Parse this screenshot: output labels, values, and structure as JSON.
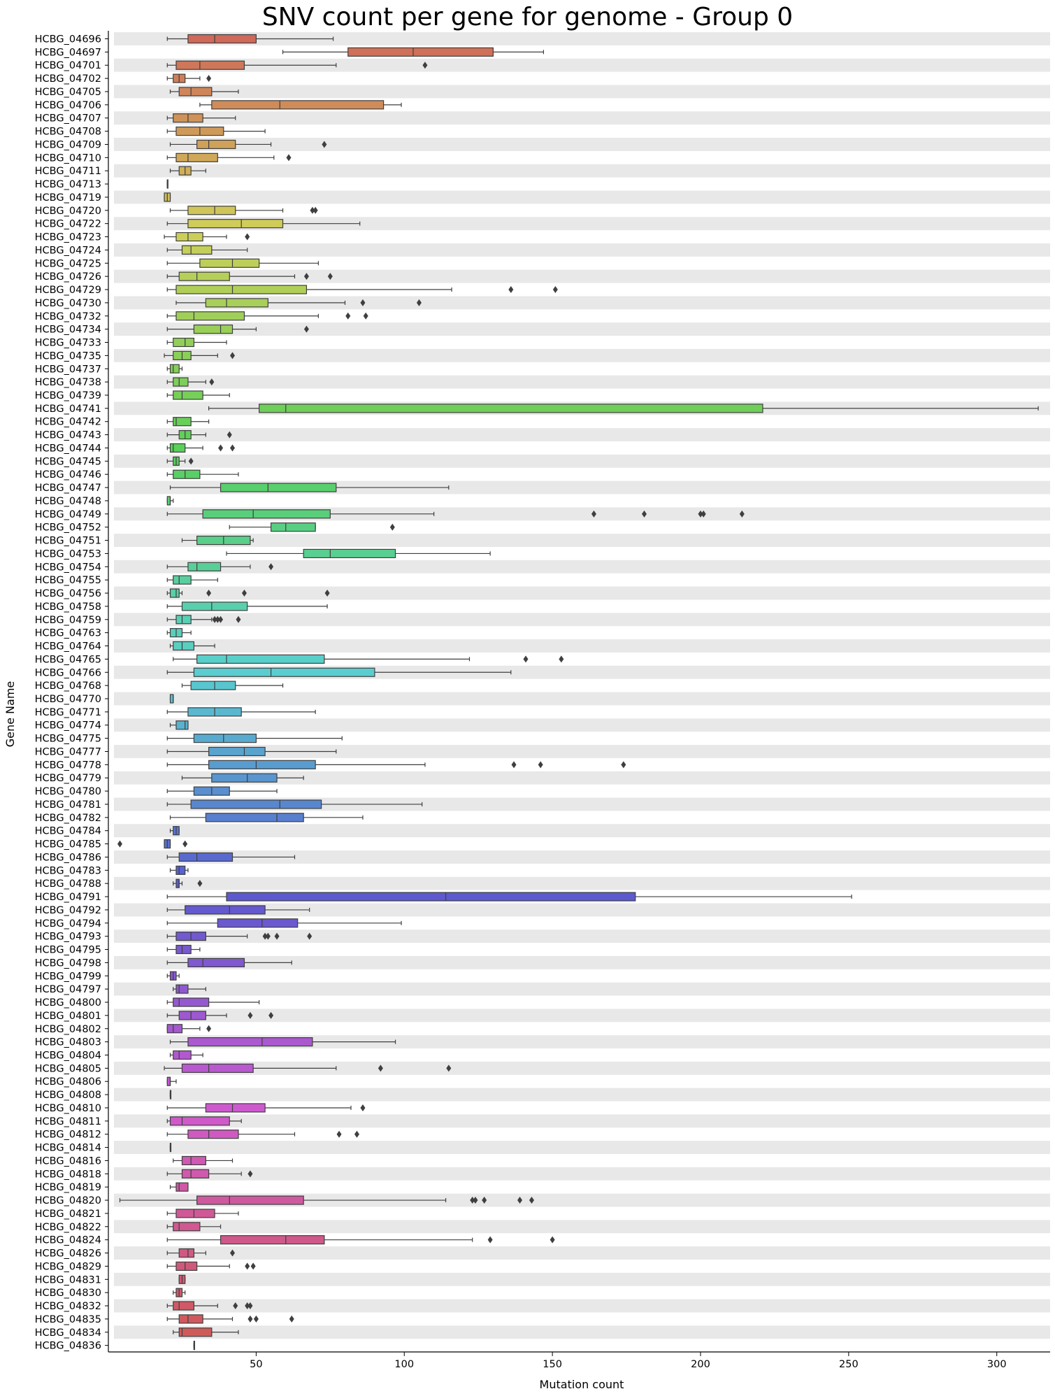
{
  "chart_data": {
    "type": "boxplot",
    "orientation": "horizontal",
    "title": "SNV count per gene for genome - Group 0",
    "xlabel": "Mutation count",
    "ylabel": "Gene Name",
    "xlim": [
      2,
      318
    ],
    "xticks": [
      50,
      100,
      150,
      200,
      250,
      300
    ],
    "grid": false,
    "alternating_row_bands": true,
    "band_color": "#e8e8e8",
    "genes": [
      {
        "name": "HCBG_04696",
        "whislo": 20,
        "q1": 27,
        "med": 36,
        "q3": 50,
        "whishi": 76,
        "fliers": []
      },
      {
        "name": "HCBG_04697",
        "whislo": 59,
        "q1": 81,
        "med": 103,
        "q3": 130,
        "whishi": 147,
        "fliers": []
      },
      {
        "name": "HCBG_04701",
        "whislo": 20,
        "q1": 23,
        "med": 31,
        "q3": 46,
        "whishi": 77,
        "fliers": [
          107
        ]
      },
      {
        "name": "HCBG_04702",
        "whislo": 20,
        "q1": 22,
        "med": 24,
        "q3": 26,
        "whishi": 31,
        "fliers": [
          34
        ]
      },
      {
        "name": "HCBG_04705",
        "whislo": 21,
        "q1": 24,
        "med": 28,
        "q3": 35,
        "whishi": 44,
        "fliers": []
      },
      {
        "name": "HCBG_04706",
        "whislo": 31,
        "q1": 35,
        "med": 58,
        "q3": 93,
        "whishi": 99,
        "fliers": []
      },
      {
        "name": "HCBG_04707",
        "whislo": 20,
        "q1": 22,
        "med": 27,
        "q3": 32,
        "whishi": 43,
        "fliers": []
      },
      {
        "name": "HCBG_04708",
        "whislo": 20,
        "q1": 23,
        "med": 31,
        "q3": 39,
        "whishi": 53,
        "fliers": []
      },
      {
        "name": "HCBG_04709",
        "whislo": 21,
        "q1": 30,
        "med": 34,
        "q3": 43,
        "whishi": 55,
        "fliers": [
          73
        ]
      },
      {
        "name": "HCBG_04710",
        "whislo": 20,
        "q1": 23,
        "med": 27,
        "q3": 37,
        "whishi": 56,
        "fliers": [
          61
        ]
      },
      {
        "name": "HCBG_04711",
        "whislo": 21,
        "q1": 24,
        "med": 26,
        "q3": 28,
        "whishi": 33,
        "fliers": []
      },
      {
        "name": "HCBG_04713",
        "whislo": 20,
        "q1": 20,
        "med": 20,
        "q3": 20,
        "whishi": 20,
        "fliers": []
      },
      {
        "name": "HCBG_04719",
        "whislo": 19,
        "q1": 19,
        "med": 20,
        "q3": 21,
        "whishi": 21,
        "fliers": []
      },
      {
        "name": "HCBG_04720",
        "whislo": 21,
        "q1": 27,
        "med": 36,
        "q3": 43,
        "whishi": 59,
        "fliers": [
          69,
          70
        ]
      },
      {
        "name": "HCBG_04722",
        "whislo": 20,
        "q1": 27,
        "med": 45,
        "q3": 59,
        "whishi": 85,
        "fliers": []
      },
      {
        "name": "HCBG_04723",
        "whislo": 19,
        "q1": 23,
        "med": 27,
        "q3": 32,
        "whishi": 40,
        "fliers": [
          47
        ]
      },
      {
        "name": "HCBG_04724",
        "whislo": 20,
        "q1": 25,
        "med": 28,
        "q3": 35,
        "whishi": 47,
        "fliers": []
      },
      {
        "name": "HCBG_04725",
        "whislo": 20,
        "q1": 31,
        "med": 42,
        "q3": 51,
        "whishi": 71,
        "fliers": []
      },
      {
        "name": "HCBG_04726",
        "whislo": 20,
        "q1": 24,
        "med": 30,
        "q3": 41,
        "whishi": 63,
        "fliers": [
          67,
          75
        ]
      },
      {
        "name": "HCBG_04729",
        "whislo": 20,
        "q1": 23,
        "med": 42,
        "q3": 67,
        "whishi": 116,
        "fliers": [
          136,
          151
        ]
      },
      {
        "name": "HCBG_04730",
        "whislo": 23,
        "q1": 33,
        "med": 40,
        "q3": 54,
        "whishi": 80,
        "fliers": [
          86,
          105
        ]
      },
      {
        "name": "HCBG_04732",
        "whislo": 20,
        "q1": 23,
        "med": 29,
        "q3": 46,
        "whishi": 71,
        "fliers": [
          81,
          87
        ]
      },
      {
        "name": "HCBG_04734",
        "whislo": 20,
        "q1": 29,
        "med": 38,
        "q3": 42,
        "whishi": 50,
        "fliers": [
          67
        ]
      },
      {
        "name": "HCBG_04733",
        "whislo": 20,
        "q1": 22,
        "med": 26,
        "q3": 29,
        "whishi": 40,
        "fliers": []
      },
      {
        "name": "HCBG_04735",
        "whislo": 19,
        "q1": 22,
        "med": 25,
        "q3": 28,
        "whishi": 37,
        "fliers": [
          42
        ]
      },
      {
        "name": "HCBG_04737",
        "whislo": 20,
        "q1": 21,
        "med": 22,
        "q3": 24,
        "whishi": 25,
        "fliers": []
      },
      {
        "name": "HCBG_04738",
        "whislo": 20,
        "q1": 22,
        "med": 24,
        "q3": 27,
        "whishi": 33,
        "fliers": [
          35
        ]
      },
      {
        "name": "HCBG_04739",
        "whislo": 20,
        "q1": 22,
        "med": 25,
        "q3": 32,
        "whishi": 41,
        "fliers": []
      },
      {
        "name": "HCBG_04741",
        "whislo": 34,
        "q1": 51,
        "med": 60,
        "q3": 221,
        "whishi": 314,
        "fliers": []
      },
      {
        "name": "HCBG_04742",
        "whislo": 20,
        "q1": 22,
        "med": 23,
        "q3": 28,
        "whishi": 34,
        "fliers": []
      },
      {
        "name": "HCBG_04743",
        "whislo": 20,
        "q1": 24,
        "med": 26,
        "q3": 28,
        "whishi": 33,
        "fliers": [
          41
        ]
      },
      {
        "name": "HCBG_04744",
        "whislo": 20,
        "q1": 21,
        "med": 22,
        "q3": 26,
        "whishi": 32,
        "fliers": [
          38,
          42
        ]
      },
      {
        "name": "HCBG_04745",
        "whislo": 20,
        "q1": 22,
        "med": 23,
        "q3": 24,
        "whishi": 26,
        "fliers": [
          28
        ]
      },
      {
        "name": "HCBG_04746",
        "whislo": 20,
        "q1": 22,
        "med": 26,
        "q3": 31,
        "whishi": 44,
        "fliers": []
      },
      {
        "name": "HCBG_04747",
        "whislo": 21,
        "q1": 38,
        "med": 54,
        "q3": 77,
        "whishi": 115,
        "fliers": []
      },
      {
        "name": "HCBG_04748",
        "whislo": 20,
        "q1": 20,
        "med": 21,
        "q3": 21,
        "whishi": 22,
        "fliers": []
      },
      {
        "name": "HCBG_04749",
        "whislo": 20,
        "q1": 32,
        "med": 49,
        "q3": 75,
        "whishi": 110,
        "fliers": [
          164,
          181,
          200,
          201,
          214
        ]
      },
      {
        "name": "HCBG_04752",
        "whislo": 41,
        "q1": 55,
        "med": 60,
        "q3": 70,
        "whishi": 70,
        "fliers": [
          96
        ]
      },
      {
        "name": "HCBG_04751",
        "whislo": 25,
        "q1": 30,
        "med": 39,
        "q3": 48,
        "whishi": 49,
        "fliers": []
      },
      {
        "name": "HCBG_04753",
        "whislo": 40,
        "q1": 66,
        "med": 75,
        "q3": 97,
        "whishi": 129,
        "fliers": []
      },
      {
        "name": "HCBG_04754",
        "whislo": 20,
        "q1": 27,
        "med": 30,
        "q3": 38,
        "whishi": 48,
        "fliers": [
          55
        ]
      },
      {
        "name": "HCBG_04755",
        "whislo": 20,
        "q1": 22,
        "med": 24,
        "q3": 28,
        "whishi": 37,
        "fliers": []
      },
      {
        "name": "HCBG_04756",
        "whislo": 20,
        "q1": 21,
        "med": 23,
        "q3": 24,
        "whishi": 25,
        "fliers": [
          34,
          46,
          74
        ]
      },
      {
        "name": "HCBG_04758",
        "whislo": 20,
        "q1": 25,
        "med": 35,
        "q3": 47,
        "whishi": 74,
        "fliers": []
      },
      {
        "name": "HCBG_04759",
        "whislo": 20,
        "q1": 23,
        "med": 25,
        "q3": 28,
        "whishi": 35,
        "fliers": [
          36,
          37,
          38,
          44
        ]
      },
      {
        "name": "HCBG_04763",
        "whislo": 20,
        "q1": 21,
        "med": 23,
        "q3": 25,
        "whishi": 28,
        "fliers": []
      },
      {
        "name": "HCBG_04764",
        "whislo": 21,
        "q1": 22,
        "med": 25,
        "q3": 29,
        "whishi": 36,
        "fliers": []
      },
      {
        "name": "HCBG_04765",
        "whislo": 22,
        "q1": 30,
        "med": 40,
        "q3": 73,
        "whishi": 122,
        "fliers": [
          141,
          153
        ]
      },
      {
        "name": "HCBG_04766",
        "whislo": 20,
        "q1": 29,
        "med": 55,
        "q3": 90,
        "whishi": 136,
        "fliers": []
      },
      {
        "name": "HCBG_04768",
        "whislo": 25,
        "q1": 28,
        "med": 36,
        "q3": 43,
        "whishi": 59,
        "fliers": []
      },
      {
        "name": "HCBG_04770",
        "whislo": 21,
        "q1": 21,
        "med": 22,
        "q3": 22,
        "whishi": 22,
        "fliers": []
      },
      {
        "name": "HCBG_04771",
        "whislo": 20,
        "q1": 27,
        "med": 36,
        "q3": 45,
        "whishi": 70,
        "fliers": []
      },
      {
        "name": "HCBG_04774",
        "whislo": 21,
        "q1": 23,
        "med": 26,
        "q3": 27,
        "whishi": 27,
        "fliers": []
      },
      {
        "name": "HCBG_04775",
        "whislo": 20,
        "q1": 29,
        "med": 39,
        "q3": 50,
        "whishi": 79,
        "fliers": []
      },
      {
        "name": "HCBG_04777",
        "whislo": 20,
        "q1": 34,
        "med": 46,
        "q3": 53,
        "whishi": 77,
        "fliers": []
      },
      {
        "name": "HCBG_04778",
        "whislo": 20,
        "q1": 34,
        "med": 50,
        "q3": 70,
        "whishi": 107,
        "fliers": [
          137,
          146,
          174
        ]
      },
      {
        "name": "HCBG_04779",
        "whislo": 25,
        "q1": 35,
        "med": 47,
        "q3": 57,
        "whishi": 66,
        "fliers": []
      },
      {
        "name": "HCBG_04780",
        "whislo": 20,
        "q1": 29,
        "med": 35,
        "q3": 41,
        "whishi": 57,
        "fliers": []
      },
      {
        "name": "HCBG_04781",
        "whislo": 20,
        "q1": 28,
        "med": 58,
        "q3": 72,
        "whishi": 106,
        "fliers": []
      },
      {
        "name": "HCBG_04782",
        "whislo": 21,
        "q1": 33,
        "med": 57,
        "q3": 66,
        "whishi": 86,
        "fliers": []
      },
      {
        "name": "HCBG_04784",
        "whislo": 21,
        "q1": 22,
        "med": 23,
        "q3": 24,
        "whishi": 24,
        "fliers": []
      },
      {
        "name": "HCBG_04785",
        "whislo": 19,
        "q1": 19,
        "med": 20,
        "q3": 21,
        "whishi": 21,
        "fliers": [
          4,
          26
        ]
      },
      {
        "name": "HCBG_04786",
        "whislo": 20,
        "q1": 24,
        "med": 30,
        "q3": 42,
        "whishi": 63,
        "fliers": []
      },
      {
        "name": "HCBG_04783",
        "whislo": 21,
        "q1": 23,
        "med": 24,
        "q3": 26,
        "whishi": 27,
        "fliers": []
      },
      {
        "name": "HCBG_04788",
        "whislo": 22,
        "q1": 23,
        "med": 24,
        "q3": 24,
        "whishi": 25,
        "fliers": [
          31
        ]
      },
      {
        "name": "HCBG_04791",
        "whislo": 20,
        "q1": 40,
        "med": 114,
        "q3": 178,
        "whishi": 251,
        "fliers": []
      },
      {
        "name": "HCBG_04792",
        "whislo": 20,
        "q1": 26,
        "med": 41,
        "q3": 53,
        "whishi": 68,
        "fliers": []
      },
      {
        "name": "HCBG_04794",
        "whislo": 20,
        "q1": 37,
        "med": 52,
        "q3": 64,
        "whishi": 99,
        "fliers": []
      },
      {
        "name": "HCBG_04793",
        "whislo": 20,
        "q1": 23,
        "med": 28,
        "q3": 33,
        "whishi": 47,
        "fliers": [
          53,
          54,
          57,
          68
        ]
      },
      {
        "name": "HCBG_04795",
        "whislo": 20,
        "q1": 23,
        "med": 25,
        "q3": 28,
        "whishi": 31,
        "fliers": []
      },
      {
        "name": "HCBG_04798",
        "whislo": 20,
        "q1": 27,
        "med": 32,
        "q3": 46,
        "whishi": 62,
        "fliers": []
      },
      {
        "name": "HCBG_04799",
        "whislo": 20,
        "q1": 21,
        "med": 22,
        "q3": 23,
        "whishi": 24,
        "fliers": []
      },
      {
        "name": "HCBG_04797",
        "whislo": 22,
        "q1": 23,
        "med": 24,
        "q3": 27,
        "whishi": 33,
        "fliers": []
      },
      {
        "name": "HCBG_04800",
        "whislo": 20,
        "q1": 22,
        "med": 24,
        "q3": 34,
        "whishi": 51,
        "fliers": []
      },
      {
        "name": "HCBG_04801",
        "whislo": 20,
        "q1": 24,
        "med": 28,
        "q3": 33,
        "whishi": 40,
        "fliers": [
          48,
          55
        ]
      },
      {
        "name": "HCBG_04802",
        "whislo": 20,
        "q1": 20,
        "med": 22,
        "q3": 25,
        "whishi": 31,
        "fliers": [
          34
        ]
      },
      {
        "name": "HCBG_04803",
        "whislo": 21,
        "q1": 27,
        "med": 52,
        "q3": 69,
        "whishi": 97,
        "fliers": []
      },
      {
        "name": "HCBG_04804",
        "whislo": 21,
        "q1": 22,
        "med": 24,
        "q3": 28,
        "whishi": 32,
        "fliers": []
      },
      {
        "name": "HCBG_04805",
        "whislo": 19,
        "q1": 25,
        "med": 34,
        "q3": 49,
        "whishi": 77,
        "fliers": [
          92,
          115
        ]
      },
      {
        "name": "HCBG_04806",
        "whislo": 20,
        "q1": 20,
        "med": 21,
        "q3": 21,
        "whishi": 23,
        "fliers": []
      },
      {
        "name": "HCBG_04808",
        "whislo": 21,
        "q1": 21,
        "med": 21,
        "q3": 21,
        "whishi": 21,
        "fliers": []
      },
      {
        "name": "HCBG_04810",
        "whislo": 20,
        "q1": 33,
        "med": 42,
        "q3": 53,
        "whishi": 82,
        "fliers": [
          86
        ]
      },
      {
        "name": "HCBG_04811",
        "whislo": 20,
        "q1": 21,
        "med": 25,
        "q3": 41,
        "whishi": 45,
        "fliers": []
      },
      {
        "name": "HCBG_04812",
        "whislo": 20,
        "q1": 27,
        "med": 34,
        "q3": 44,
        "whishi": 63,
        "fliers": [
          78,
          84
        ]
      },
      {
        "name": "HCBG_04814",
        "whislo": 21,
        "q1": 21,
        "med": 21,
        "q3": 21,
        "whishi": 21,
        "fliers": []
      },
      {
        "name": "HCBG_04816",
        "whislo": 22,
        "q1": 25,
        "med": 28,
        "q3": 33,
        "whishi": 42,
        "fliers": []
      },
      {
        "name": "HCBG_04818",
        "whislo": 20,
        "q1": 25,
        "med": 28,
        "q3": 34,
        "whishi": 45,
        "fliers": [
          48
        ]
      },
      {
        "name": "HCBG_04819",
        "whislo": 21,
        "q1": 23,
        "med": 24,
        "q3": 27,
        "whishi": 27,
        "fliers": []
      },
      {
        "name": "HCBG_04820",
        "whislo": 4,
        "q1": 30,
        "med": 41,
        "q3": 66,
        "whishi": 114,
        "fliers": [
          123,
          124,
          127,
          139,
          143
        ]
      },
      {
        "name": "HCBG_04821",
        "whislo": 20,
        "q1": 23,
        "med": 29,
        "q3": 36,
        "whishi": 44,
        "fliers": []
      },
      {
        "name": "HCBG_04822",
        "whislo": 20,
        "q1": 22,
        "med": 24,
        "q3": 31,
        "whishi": 38,
        "fliers": []
      },
      {
        "name": "HCBG_04824",
        "whislo": 20,
        "q1": 38,
        "med": 60,
        "q3": 73,
        "whishi": 123,
        "fliers": [
          129,
          150
        ]
      },
      {
        "name": "HCBG_04826",
        "whislo": 20,
        "q1": 24,
        "med": 27,
        "q3": 29,
        "whishi": 33,
        "fliers": [
          42
        ]
      },
      {
        "name": "HCBG_04829",
        "whislo": 20,
        "q1": 23,
        "med": 26,
        "q3": 30,
        "whishi": 41,
        "fliers": [
          47,
          49
        ]
      },
      {
        "name": "HCBG_04831",
        "whislo": 24,
        "q1": 24,
        "med": 25,
        "q3": 26,
        "whishi": 26,
        "fliers": []
      },
      {
        "name": "HCBG_04830",
        "whislo": 22,
        "q1": 23,
        "med": 24,
        "q3": 25,
        "whishi": 26,
        "fliers": []
      },
      {
        "name": "HCBG_04832",
        "whislo": 20,
        "q1": 22,
        "med": 24,
        "q3": 29,
        "whishi": 37,
        "fliers": [
          43,
          47,
          48
        ]
      },
      {
        "name": "HCBG_04835",
        "whislo": 20,
        "q1": 24,
        "med": 27,
        "q3": 32,
        "whishi": 42,
        "fliers": [
          48,
          50,
          62
        ]
      },
      {
        "name": "HCBG_04834",
        "whislo": 22,
        "q1": 24,
        "med": 25,
        "q3": 35,
        "whishi": 44,
        "fliers": []
      },
      {
        "name": "HCBG_04836",
        "whislo": 29,
        "q1": 29,
        "med": 29,
        "q3": 29,
        "whishi": 29,
        "fliers": []
      }
    ]
  }
}
